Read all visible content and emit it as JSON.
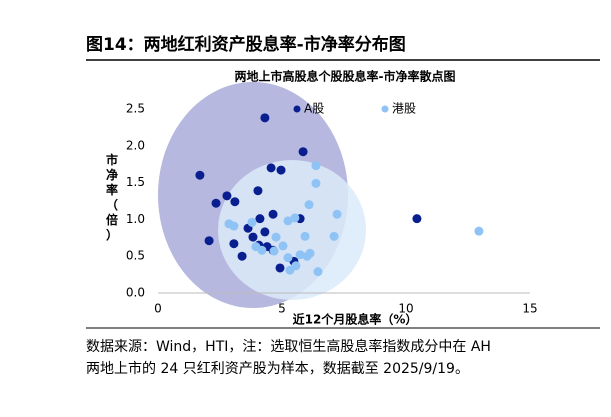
{
  "figure_title": "图14：两地红利资产股息率-市净率分布图",
  "source": [
    "数据来源：Wind，HTI，注：选取恒生高股息率指数成分中在 AH",
    "两地上市的 24 只红利资产股为样本，数据截至 2025/9/19。"
  ],
  "chart_data": {
    "type": "scatter",
    "title": "两地上市高股息个股股息率-市净率散点图",
    "x_label": "近12个月股息率（%）",
    "y_label": "市净率（倍）",
    "xlim": [
      0,
      15
    ],
    "xticks": [
      0,
      5,
      10,
      15
    ],
    "ylim": [
      0,
      2.5
    ],
    "yticks": [
      {
        "value": 0,
        "label": "0.0"
      },
      0.5,
      {
        "value": 1,
        "label": "1.0"
      },
      1.5,
      {
        "value": 2,
        "label": "2.0"
      },
      2.5
    ],
    "legend": "top",
    "grid": false,
    "series": [
      {
        "name": "A股",
        "color": "#0a1f8f",
        "x": [
          4.31,
          1.69,
          5.85,
          4.56,
          4.96,
          4.03,
          2.78,
          2.34,
          3.1,
          4.64,
          4.11,
          5.73,
          3.63,
          4.31,
          2.06,
          3.06,
          4.07,
          4.4,
          3.39,
          4.64,
          5.48,
          4.92,
          10.44,
          3.83
        ],
        "values": [
          2.38,
          1.6,
          1.92,
          1.7,
          1.67,
          1.39,
          1.32,
          1.22,
          1.24,
          1.07,
          1.01,
          1.01,
          0.88,
          0.83,
          0.71,
          0.67,
          0.65,
          0.63,
          0.5,
          0.58,
          0.43,
          0.34,
          1.01,
          0.76
        ]
      },
      {
        "name": "港股",
        "color": "#8fc3f5",
        "x": [
          6.37,
          6.37,
          6.09,
          7.22,
          2.86,
          3.06,
          5.24,
          5.52,
          3.79,
          4.76,
          7.1,
          5.04,
          3.95,
          5.73,
          6.13,
          6.01,
          5.56,
          6.45,
          5.32,
          12.94,
          4.68,
          4.19,
          5.24,
          5.93
        ],
        "values": [
          1.73,
          1.49,
          1.2,
          1.07,
          0.94,
          0.91,
          0.98,
          1.02,
          0.96,
          0.76,
          0.77,
          0.64,
          0.63,
          0.52,
          0.54,
          0.5,
          0.37,
          0.29,
          0.31,
          0.84,
          0.57,
          0.58,
          0.48,
          0.77
        ]
      }
    ]
  }
}
